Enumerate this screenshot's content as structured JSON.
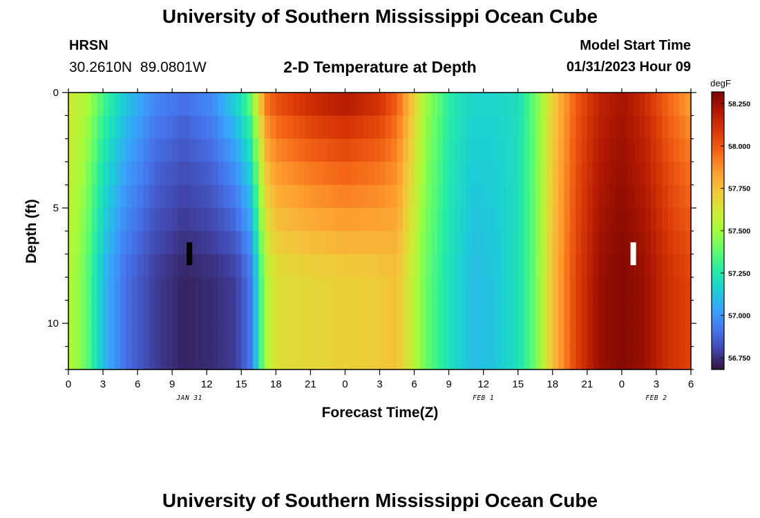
{
  "header": {
    "title": "University of Southern Mississippi Ocean Cube",
    "station_id": "HRSN",
    "coordinates": "30.2610N  89.0801W",
    "subtitle": "2-D Temperature at Depth",
    "model_start_label": "Model Start Time",
    "model_start_value": "01/31/2023 Hour 09"
  },
  "footer": {
    "title": "University of Southern Mississippi Ocean Cube"
  },
  "chart_data": {
    "type": "heatmap",
    "title": "2-D Temperature at Depth",
    "xlabel": "Forecast Time(Z)",
    "ylabel": "Depth (ft)",
    "x_ticks": [
      "0",
      "3",
      "6",
      "9",
      "12",
      "15",
      "18",
      "21",
      "0",
      "3",
      "6",
      "9",
      "12",
      "15",
      "18",
      "21",
      "0",
      "3",
      "6"
    ],
    "date_labels": [
      {
        "label": "JAN 31",
        "at_tick": 3.5
      },
      {
        "label": "FEB 1",
        "at_tick": 12
      },
      {
        "label": "FEB 2",
        "at_tick": 17
      }
    ],
    "y_ticks": [
      "0",
      "5",
      "10"
    ],
    "ylim": [
      0,
      12
    ],
    "x_hours_range": [
      0,
      54
    ],
    "colorbar": {
      "unit": "degF",
      "min": 56.68,
      "max": 58.32,
      "ticks": [
        "58.250",
        "58.000",
        "57.750",
        "57.500",
        "57.250",
        "57.000",
        "56.750"
      ],
      "colors": [
        "#30123b",
        "#4145ab",
        "#4675ed",
        "#39a2fc",
        "#1bcfd4",
        "#24eca6",
        "#61fc6c",
        "#a4fc3b",
        "#d1e834",
        "#f3c63a",
        "#fe9b2d",
        "#f36315",
        "#d93806",
        "#b11901",
        "#7a0402"
      ]
    },
    "markers": [
      {
        "name": "min",
        "hour": 10.5,
        "depth": 7,
        "color": "#000000"
      },
      {
        "name": "max",
        "hour": 49,
        "depth": 7,
        "color": "#ffffff"
      }
    ],
    "profile": {
      "hours": [
        0,
        1.5,
        3,
        5,
        7.5,
        10,
        12.5,
        14.5,
        15.8,
        16.5,
        17,
        18,
        21,
        24,
        27,
        28.5,
        30,
        31,
        33,
        35,
        37,
        39,
        40.5,
        42,
        44,
        46,
        48,
        50,
        52,
        54
      ],
      "surface_degF": [
        57.62,
        57.55,
        57.35,
        57.15,
        56.98,
        56.92,
        57.0,
        57.2,
        57.42,
        57.7,
        57.95,
        58.05,
        58.18,
        58.25,
        58.15,
        58.0,
        57.72,
        57.5,
        57.28,
        57.18,
        57.18,
        57.2,
        57.4,
        57.7,
        57.98,
        58.15,
        58.22,
        58.12,
        57.95,
        57.82
      ],
      "bottom_degF": [
        57.55,
        57.4,
        57.1,
        56.9,
        56.78,
        56.72,
        56.74,
        56.78,
        56.92,
        57.2,
        57.5,
        57.65,
        57.68,
        57.7,
        57.72,
        57.75,
        57.55,
        57.4,
        57.22,
        57.1,
        57.12,
        57.22,
        57.4,
        57.75,
        58.05,
        58.25,
        58.3,
        58.25,
        58.12,
        58.05
      ]
    }
  }
}
